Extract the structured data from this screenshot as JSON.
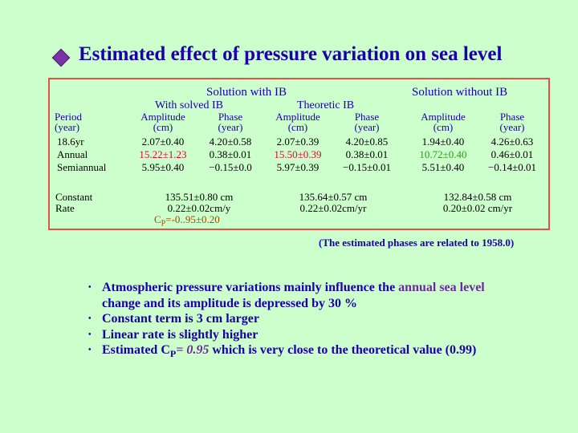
{
  "title": "Estimated effect of pressure variation on sea level",
  "table": {
    "group_with_ib": "Solution with IB",
    "group_without_ib": "Solution without IB",
    "sub_solved": "With solved IB",
    "sub_theoretic": "Theoretic IB",
    "period_header": [
      "Period",
      "(year)"
    ],
    "amp_header": [
      "Amplitude",
      "(cm)"
    ],
    "phase_header": [
      "Phase",
      "(year)"
    ],
    "row_labels": [
      "18.6yr",
      "Annual",
      "Semiannual"
    ],
    "solved_amp": [
      "2.07±0.40",
      "15.22±1.23",
      "5.95±0.40"
    ],
    "solved_phase": [
      "4.20±0.58",
      "0.38±0.01",
      "−0.15±0.0"
    ],
    "theo_amp": [
      "2.07±0.39",
      "15.50±0.39",
      "5.97±0.39"
    ],
    "theo_phase": [
      "4.20±0.85",
      "0.38±0.01",
      "−0.15±0.01"
    ],
    "noib_amp": [
      "1.94±0.40",
      "10.72±0.40",
      "5.51±0.40"
    ],
    "noib_phase": [
      "4.26±0.63",
      "0.46±0.01",
      "−0.14±0.01"
    ],
    "constant_label": [
      "Constant",
      "Rate"
    ],
    "solved_const": "135.51±0.80 cm",
    "solved_rate": "0.22±0.02cm/y",
    "solved_cp_c": "C",
    "solved_cp_p": "P",
    "solved_cp_val": "=-0..95±0.20",
    "theo_const": "135.64±0.57 cm",
    "theo_rate": "0.22±0.02cm/yr",
    "noib_const": "132.84±0.58 cm",
    "noib_rate": "0.20±0.02 cm/yr"
  },
  "note": "(The estimated phases are related to 1958.0)",
  "bullets": {
    "b1_a": "Atmospheric pressure variations mainly influence the ",
    "b1_b": "annual sea level",
    "b1_c": "change and its amplitude is depressed by 30 %",
    "b2": "Constant term is 3 cm larger",
    "b3": "Linear rate is slightly higher",
    "b4_a": "Estimated C",
    "b4_sub": "P",
    "b4_b": "= 0.95",
    "b4_c": " which is very close to the theoretical value (0.99)",
    "dot": "•"
  },
  "colors": {
    "background": "#ccffcc",
    "title": "#1a00a8",
    "border": "#e0524a",
    "red_value": "#e0003c",
    "green_value": "#2a9a1a",
    "purple": "#6b2a9a"
  }
}
